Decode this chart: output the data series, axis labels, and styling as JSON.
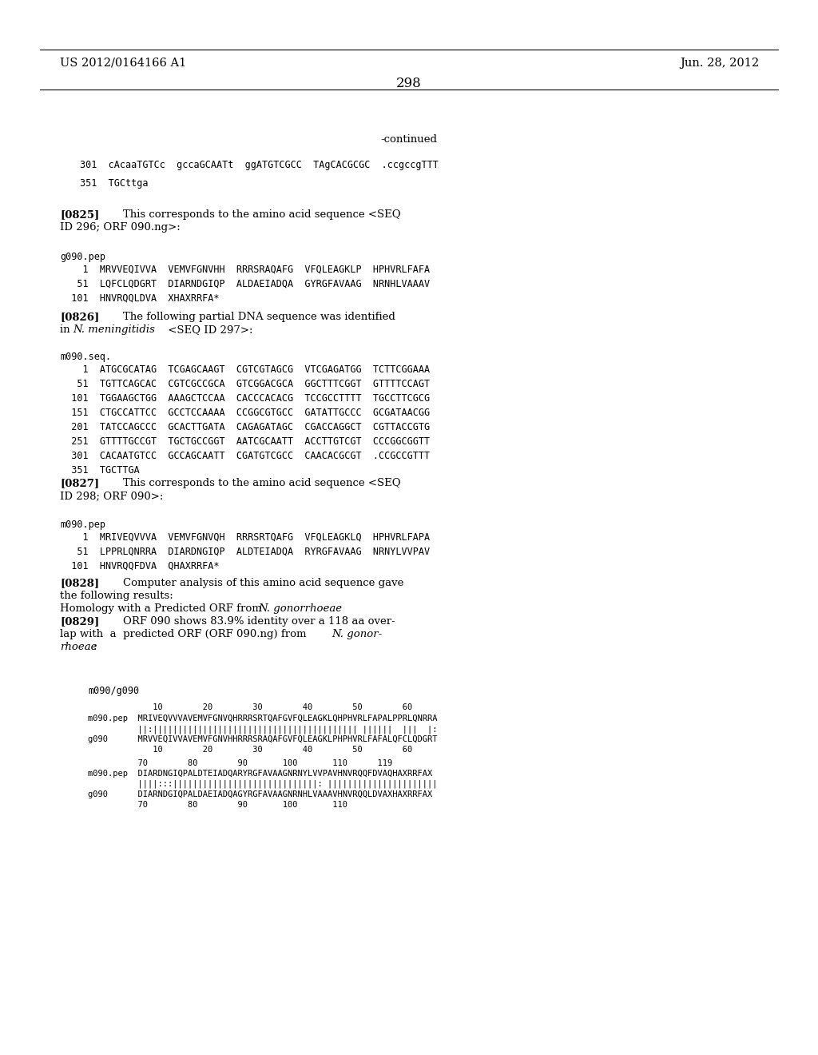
{
  "bg_color": "#ffffff",
  "header_left": "US 2012/0164166 A1",
  "header_right": "Jun. 28, 2012",
  "page_number": "298",
  "content": {
    "continued": "-continued",
    "seq_top": [
      "301  cAcaaTGTCc  gccaGCAATt  ggATGTCGCC  TAgCACGCGC  .ccgccgTTT",
      "351  TGCttga"
    ],
    "para_0825_line1": "This corresponds to the amino acid sequence <SEQ",
    "para_0825_line2": "ID 296; ORF 090.ng>:",
    "g090pep_label": "g090.pep",
    "g090pep_lines": [
      "    1  MRVVEQIVVA  VEMVFGNVHH  RRRSRAQAFG  VFQLEAGKLP  HPHVRLFAFA",
      "   51  LQFCLQDGRT  DIARNDGIQP  ALDAEIADQA  GYRGFAVAAG  NRNHLVAAAV",
      "  101  HNVRQQLDVA  XHAXRRFA*"
    ],
    "para_0826_line1": "The following partial DNA sequence was identified",
    "para_0826_line2_pre": "in ",
    "para_0826_line2_italic": "N. meningitidis",
    "para_0826_line2_post": " <SEQ ID 297>:",
    "m090seq_label": "m090.seq.",
    "m090seq_lines": [
      "    1  ATGCGCATAG  TCGAGCAAGT  CGTCGTAGCG  VTCGAGATGG  TCTTCGGAAA",
      "   51  TGTTCAGCAC  CGTCGCCGCA  GTCGGACGCA  GGCTTTCGGT  GTTTTCCAGT",
      "  101  TGGAAGCTGG  AAAGCTCCAA  CACCCACACG  TCCGCCTTTT  TGCCTTCGCG",
      "  151  CTGCCATTCC  GCCTCCAAAA  CCGGCGTGCC  GATATTGCCC  GCGATAACGG",
      "  201  TATCCAGCCC  GCACTTGATA  CAGAGATAGC  CGACCAGGCT  CGTTACCGTG",
      "  251  GTTTTGCCGT  TGCTGCCGGT  AATCGCAATT  ACCTTGTCGT  CCCGGCGGTT",
      "  301  CACAATGTCC  GCCAGCAATT  CGATGTCGCC  CAACACGCGT  .CCGCCGTTT",
      "  351  TGCTTGA"
    ],
    "para_0827_line1": "This corresponds to the amino acid sequence <SEQ",
    "para_0827_line2": "ID 298; ORF 090>:",
    "m090pep_label": "m090.pep",
    "m090pep_lines": [
      "    1  MRIVEQVVVA  VEMVFGNVQH  RRRSRTQAFG  VFQLEAGKLQ  HPHVRLFAPA",
      "   51  LPPRLQNRRA  DIARDNGIQP  ALDTEIADQA  RYRGFAVAAG  NRNYLVVPAV",
      "  101  HNVRQQFDVA  QHAXRRFA*"
    ],
    "para_0828_line1": "Computer analysis of this amino acid sequence gave",
    "para_0828_line2": "the following results:",
    "para_0828_line3_pre": "Homology with a Predicted ORF from ",
    "para_0828_line3_italic": "N. gonorrhoeae",
    "para_0829_line1": "ORF 090 shows 83.9% identity over a 118 aa over-",
    "para_0829_line2": "lap with  a  predicted ORF (ORF 090.ng) from ",
    "para_0829_line2_italic": "N. gonor-",
    "para_0829_line3_italic": "rhoeae",
    "para_0829_line3_post": ":",
    "align_label": "    m090/g090",
    "align_block": [
      "             10        20        30        40        50        60",
      "m090.pep  MRIVEQVVVAVEMVFGNVQHRRRSRTQAFGVFQLEAGKLQHPHVRLFAPALPPRLQNRRA",
      "          ||:||||||||||||||||||||||||||||||||||||||||| ||||||  |||  |:",
      "g090      MRVVEQIVVAVEMVFGNVHHRRRSRAQAFGVFQLEAGKLPHPHVRLFAFALQFCLQDGRT",
      "             10        20        30        40        50        60",
      "          70        80        90       100       110      119",
      "m090.pep  DIARDNGIQPALDTEIADQARYRGFAVAAGNRNYLVVPAVHNVRQQFDVAQHAXRRFAX",
      "          ||||:::|||||||||||||||||||||||||||||: ||||||||||||||||||||||",
      "g090      DIARNDGIQPALDAEIADQAGYRGFAVAAGNRNHLVAAAVHNVRQQLDVAXHAXRRFAX",
      "          70        80        90       100       110"
    ]
  }
}
